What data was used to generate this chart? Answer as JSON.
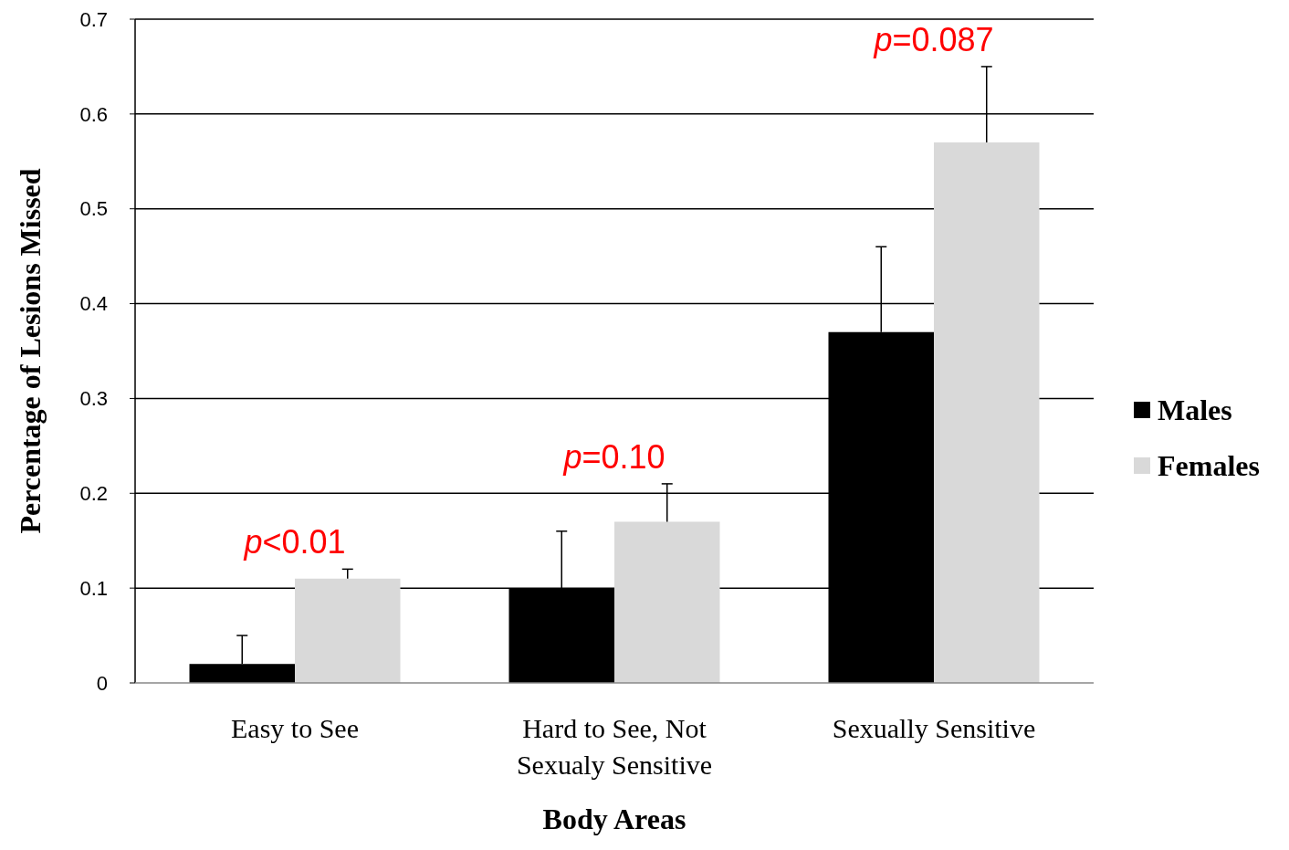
{
  "chart_data": {
    "type": "bar",
    "xlabel": "Body Areas",
    "ylabel": "Percentage of Lesions Missed",
    "categories": [
      "Easy to See",
      "Hard to See, Not Sexualy Sensitive",
      "Sexually Sensitive"
    ],
    "series": [
      {
        "name": "Males",
        "color": "#000000",
        "values": [
          0.02,
          0.1,
          0.37
        ],
        "errors": [
          [
            0.02,
            0.05
          ],
          [
            0.1,
            0.16
          ],
          [
            0.37,
            0.46
          ]
        ]
      },
      {
        "name": "Females",
        "color": "#d9d9d9",
        "values": [
          0.11,
          0.17,
          0.57
        ],
        "errors": [
          [
            0.11,
            0.12
          ],
          [
            0.17,
            0.21
          ],
          [
            0.57,
            0.65
          ]
        ]
      }
    ],
    "ylim": [
      0,
      0.7
    ],
    "yticks": [
      0,
      0.1,
      0.2,
      0.3,
      0.4,
      0.5,
      0.6,
      0.7
    ],
    "grid": "y",
    "legend": "right",
    "annotations": [
      "p<0.01",
      "p=0.10",
      "p=0.087"
    ]
  }
}
